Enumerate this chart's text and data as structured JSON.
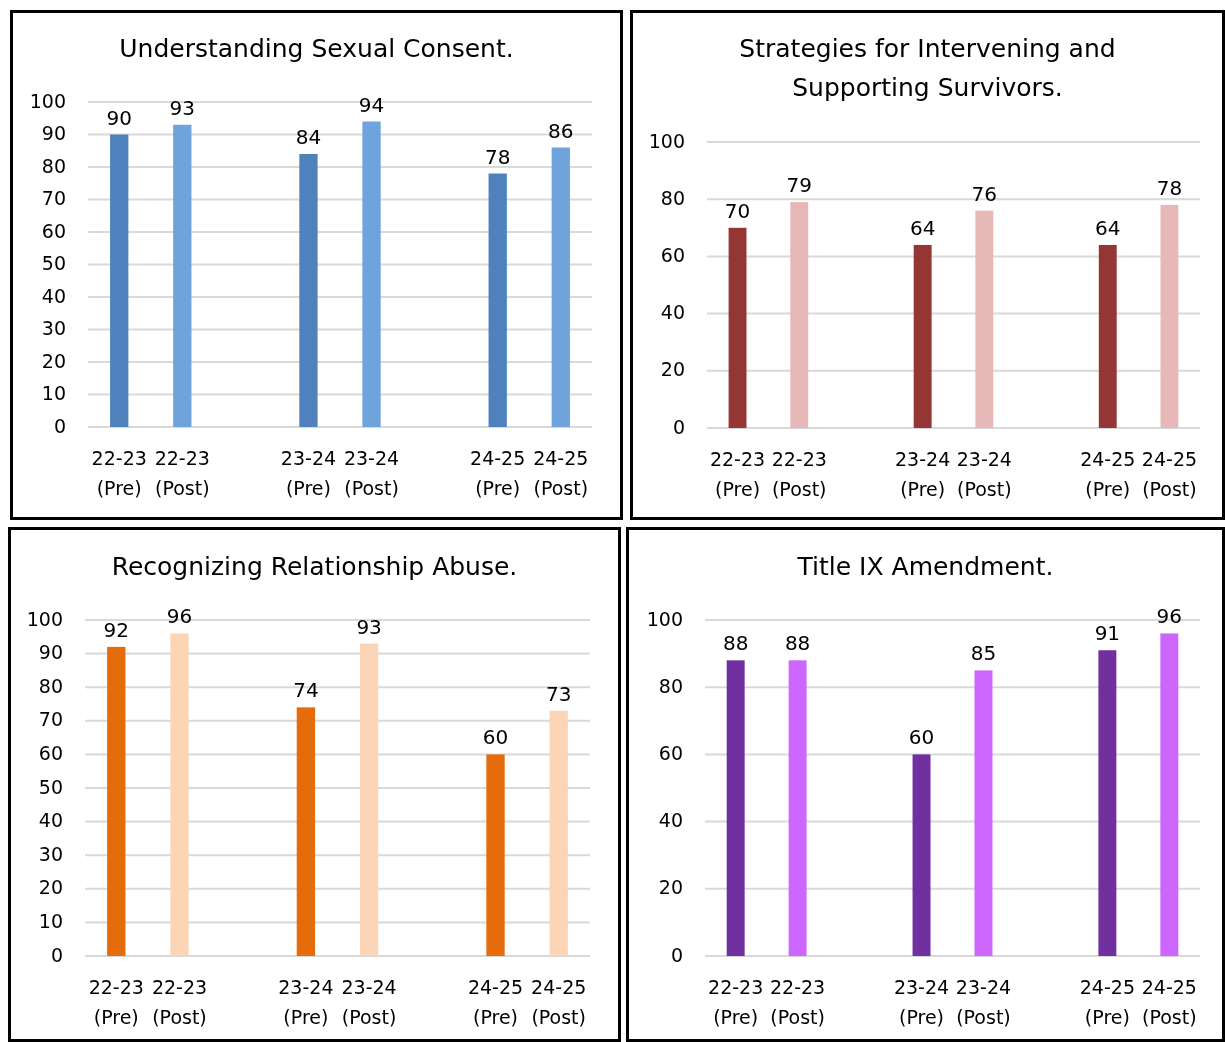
{
  "chart_data": [
    {
      "type": "bar",
      "title": "Understanding Sexual Consent.",
      "categories": [
        "22-23 (Pre)",
        "22-23 (Post)",
        null,
        "23-24 (Pre)",
        "23-24 (Post)",
        null,
        "24-25 (Pre)",
        "24-25 (Post)"
      ],
      "values": [
        90,
        93,
        null,
        84,
        94,
        null,
        78,
        86
      ],
      "colors": [
        "#4f81bd",
        "#6fa3dc",
        null,
        "#4f81bd",
        "#6fa3dc",
        null,
        "#4f81bd",
        "#6fa3dc"
      ],
      "ylim": [
        0,
        100
      ],
      "yticks": [
        0,
        10,
        20,
        30,
        40,
        50,
        60,
        70,
        80,
        90,
        100
      ],
      "grid": "y",
      "data_labels": true
    },
    {
      "type": "bar",
      "title": "Strategies for Intervening and Supporting Survivors.",
      "categories": [
        "22-23 (Pre)",
        "22-23 (Post)",
        null,
        "23-24 (Pre)",
        "23-24 (Post)",
        null,
        "24-25 (Pre)",
        "24-25 (Post)"
      ],
      "values": [
        70,
        79,
        null,
        64,
        76,
        null,
        64,
        78
      ],
      "colors": [
        "#943634",
        "#e6b8b7",
        null,
        "#943634",
        "#e6b8b7",
        null,
        "#943634",
        "#e6b8b7"
      ],
      "ylim": [
        0,
        100
      ],
      "yticks": [
        0,
        20,
        40,
        60,
        80,
        100
      ],
      "grid": "y",
      "data_labels": true
    },
    {
      "type": "bar",
      "title": "Recognizing Relationship Abuse.",
      "categories": [
        "22-23 (Pre)",
        "22-23 (Post)",
        null,
        "23-24 (Pre)",
        "23-24 (Post)",
        null,
        "24-25 (Pre)",
        "24-25 (Post)"
      ],
      "values": [
        92,
        96,
        null,
        74,
        93,
        null,
        60,
        73
      ],
      "colors": [
        "#e46c0a",
        "#fbd5b5",
        null,
        "#e46c0a",
        "#fbd5b5",
        null,
        "#e46c0a",
        "#fbd5b5"
      ],
      "ylim": [
        0,
        100
      ],
      "yticks": [
        0,
        10,
        20,
        30,
        40,
        50,
        60,
        70,
        80,
        90,
        100
      ],
      "grid": "y",
      "data_labels": true
    },
    {
      "type": "bar",
      "title": "Title IX Amendment.",
      "categories": [
        "22-23 (Pre)",
        "22-23 (Post)",
        null,
        "23-24 (Pre)",
        "23-24 (Post)",
        null,
        "24-25 (Pre)",
        "24-25 (Post)"
      ],
      "values": [
        88,
        88,
        null,
        60,
        85,
        null,
        91,
        96
      ],
      "colors": [
        "#7030a0",
        "#cc66ff",
        null,
        "#7030a0",
        "#cc66ff",
        null,
        "#7030a0",
        "#cc66ff"
      ],
      "ylim": [
        0,
        100
      ],
      "yticks": [
        0,
        20,
        40,
        60,
        80,
        100
      ],
      "grid": "y",
      "data_labels": true
    }
  ]
}
